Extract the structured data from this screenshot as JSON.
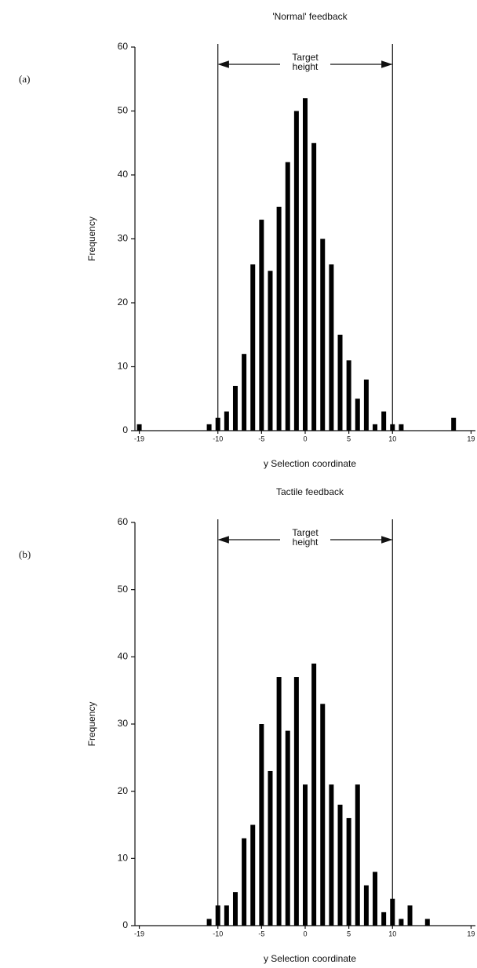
{
  "chart_data": [
    {
      "type": "bar",
      "panel": "(a)",
      "title": "'Normal' feedback",
      "xlabel": "y Selection coordinate",
      "ylabel": "Frequency",
      "annotation": [
        "Target",
        "height"
      ],
      "target_lines": [
        -10,
        10
      ],
      "x": [
        -19,
        -11,
        -10,
        -9,
        -8,
        -7,
        -6,
        -5,
        -4,
        -3,
        -2,
        -1,
        0,
        1,
        2,
        3,
        4,
        5,
        6,
        7,
        8,
        9,
        10,
        11,
        17
      ],
      "values": [
        1,
        1,
        2,
        3,
        7,
        12,
        26,
        33,
        25,
        35,
        42,
        50,
        52,
        45,
        30,
        26,
        15,
        11,
        5,
        8,
        1,
        3,
        1,
        1,
        2
      ],
      "color": "#000000",
      "xlim": [
        -19.5,
        19.5
      ],
      "xticks": [
        -19,
        -10,
        -5,
        0,
        5,
        10,
        19
      ],
      "ylim": [
        0,
        60
      ],
      "yticks": [
        0,
        10,
        20,
        30,
        40,
        50,
        60
      ]
    },
    {
      "type": "bar",
      "panel": "(b)",
      "title": "Tactile feedback",
      "xlabel": "y Selection coordinate",
      "ylabel": "Frequency",
      "annotation": [
        "Target",
        "height"
      ],
      "target_lines": [
        -10,
        10
      ],
      "x": [
        -11,
        -10,
        -9,
        -8,
        -7,
        -6,
        -5,
        -4,
        -3,
        -2,
        -1,
        0,
        1,
        2,
        3,
        4,
        5,
        6,
        7,
        8,
        9,
        10,
        11,
        12,
        14
      ],
      "values": [
        1,
        3,
        3,
        5,
        13,
        15,
        30,
        23,
        37,
        29,
        37,
        21,
        39,
        33,
        21,
        18,
        16,
        21,
        6,
        8,
        2,
        4,
        1,
        3,
        1
      ],
      "color": "#000000",
      "xlim": [
        -19.5,
        19.5
      ],
      "xticks": [
        -19,
        -10,
        -5,
        0,
        5,
        10,
        19
      ],
      "ylim": [
        0,
        60
      ],
      "yticks": [
        0,
        10,
        20,
        30,
        40,
        50,
        60
      ]
    }
  ]
}
